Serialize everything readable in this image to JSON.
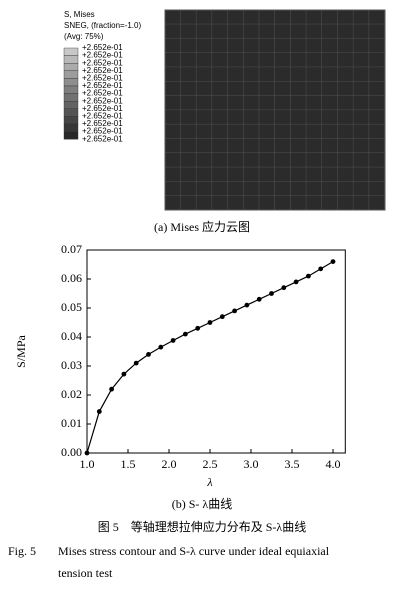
{
  "contour": {
    "legend_title": [
      "S, Mises",
      "SNEG, (fraction=-1.0)",
      "(Avg: 75%)"
    ],
    "legend_values": [
      "+2.652e-01",
      "+2.652e-01",
      "+2.652e-01",
      "+2.652e-01",
      "+2.652e-01",
      "+2.652e-01",
      "+2.652e-01",
      "+2.652e-01",
      "+2.652e-01",
      "+2.652e-01",
      "+2.652e-01",
      "+2.652e-01",
      "+2.652e-01"
    ],
    "caption": "(a) Mises 应力云图"
  },
  "chart_data": {
    "type": "line",
    "xlabel": "λ",
    "ylabel": "S/MPa",
    "x": [
      1.0,
      1.15,
      1.3,
      1.45,
      1.6,
      1.75,
      1.9,
      2.05,
      2.2,
      2.35,
      2.5,
      2.65,
      2.8,
      2.95,
      3.1,
      3.25,
      3.4,
      3.55,
      3.7,
      3.85,
      4.0
    ],
    "series": [
      {
        "name": "S",
        "color": "#000000",
        "values": [
          0,
          0.0143,
          0.022,
          0.0272,
          0.031,
          0.034,
          0.0365,
          0.0388,
          0.041,
          0.043,
          0.045,
          0.047,
          0.049,
          0.051,
          0.053,
          0.055,
          0.057,
          0.059,
          0.061,
          0.0635,
          0.066
        ]
      }
    ],
    "xlim": [
      1.0,
      4.15
    ],
    "ylim": [
      0,
      0.07
    ],
    "xticks": [
      {
        "value": 1.0,
        "label": "1.0"
      },
      1.5,
      {
        "value": 2.0,
        "label": "2.0"
      },
      2.5,
      {
        "value": 3.0,
        "label": "3.0"
      },
      3.5,
      {
        "value": 4.0,
        "label": "4.0"
      }
    ],
    "yticks": [
      {
        "value": 0,
        "label": "0.00"
      },
      0.01,
      0.02,
      0.03,
      0.04,
      0.05,
      0.06,
      0.07
    ],
    "caption": "(b) S- λ曲线"
  },
  "figure_caption_cn": "图 5　等轴理想拉伸应力分布及 S-λ曲线",
  "figure_caption_en_label": "Fig. 5",
  "figure_caption_en": [
    "Mises stress contour and S-λ curve under ideal equiaxial",
    "tension test"
  ]
}
